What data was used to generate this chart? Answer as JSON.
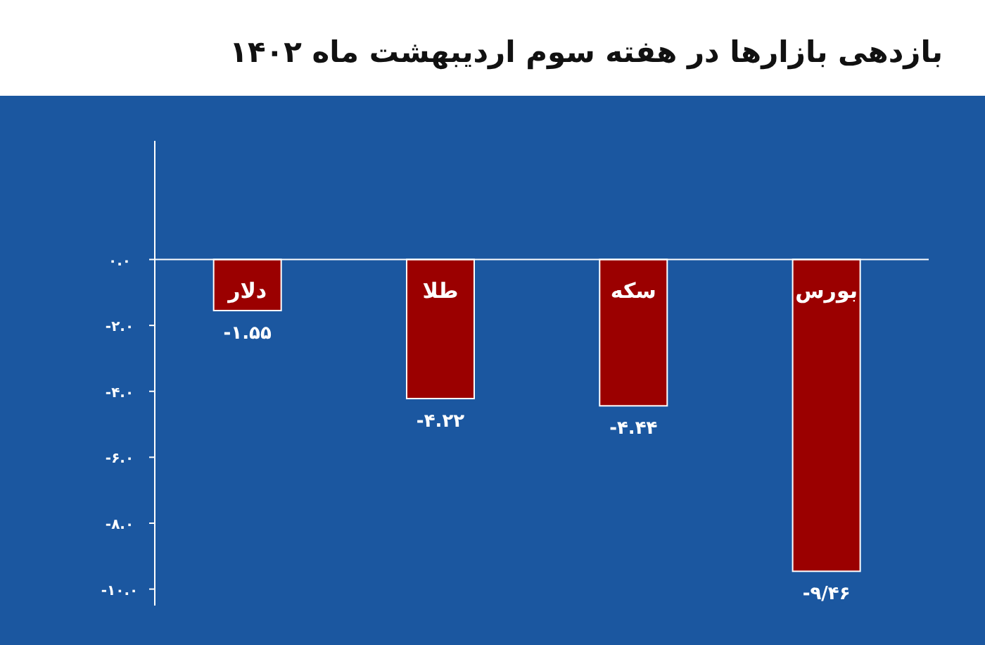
{
  "chart_data": {
    "type": "bar",
    "title": "بازدهی بازارها در هفته سوم اردیبهشت ماه ۱۴۰۲",
    "categories": [
      "دلار",
      "طلا",
      "سکه",
      "بورس"
    ],
    "values": [
      -1.55,
      -4.22,
      -4.44,
      -9.46
    ],
    "value_labels": [
      "-۱.۵۵",
      "-۴.۲۲",
      "-۴.۴۴",
      "-۹/۴۶"
    ],
    "color": "#9b0000",
    "ylim": [
      -10.5,
      3.6
    ],
    "yticks": [
      {
        "value": 0,
        "label": "۰.۰"
      },
      {
        "value": -2,
        "label": "-۲.۰"
      },
      {
        "value": -4,
        "label": "-۴.۰"
      },
      {
        "value": -6,
        "label": "-۶.۰"
      },
      {
        "value": -8,
        "label": "-۸.۰"
      },
      {
        "value": -10,
        "label": "-۱۰.۰"
      }
    ]
  }
}
